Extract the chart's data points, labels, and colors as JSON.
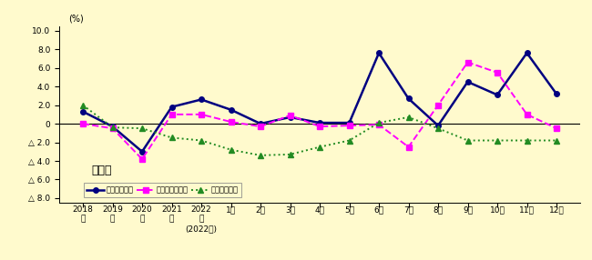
{
  "ylabel_unit": "(%)",
  "watermark": "製造業",
  "background_color": "#FFFACD",
  "plot_bg_color": "#FFFACD",
  "ylim": [
    -8.5,
    10.5
  ],
  "yticks": [
    -8.0,
    -6.0,
    -4.0,
    -2.0,
    0.0,
    2.0,
    4.0,
    6.0,
    8.0,
    10.0
  ],
  "ytick_labels": [
    "△ 8.0",
    "△ 6.0",
    "△ 4.0",
    "△ 2.0",
    "0",
    "2.0",
    "4.0",
    "6.0",
    "8.0",
    "10.0"
  ],
  "x_labels_line1": [
    "2018",
    "2019",
    "2020",
    "2021",
    "2022",
    "1月",
    "2月",
    "3月",
    "4月",
    "5月",
    "6月",
    "7月",
    "8月",
    "9月",
    "10月",
    "11月",
    "12月"
  ],
  "x_labels_line2": [
    "年",
    "年",
    "年",
    "年",
    "年",
    "",
    "",
    "",
    "",
    "",
    "",
    "",
    "",
    "",
    "",
    "",
    ""
  ],
  "x_labels_line3": [
    "",
    "",
    "",
    "",
    "(2022年)",
    "",
    "",
    "",
    "",
    "",
    "",
    "",
    "",
    "",
    "",
    "",
    ""
  ],
  "series_names": [
    "現金給与総額",
    "総実労働時間数",
    "常用労働者数"
  ],
  "series_colors": [
    "#000080",
    "#FF00FF",
    "#228B22"
  ],
  "series_markers": [
    "o",
    "s",
    "^"
  ],
  "series_linestyles": [
    "-",
    "--",
    ":"
  ],
  "series_linewidths": [
    1.8,
    1.4,
    1.4
  ],
  "series_markersizes": [
    4,
    4,
    4
  ],
  "series_values": [
    [
      1.3,
      -0.3,
      -3.0,
      1.8,
      2.6,
      1.5,
      0.0,
      0.7,
      0.1,
      0.1,
      7.6,
      2.7,
      -0.2,
      4.5,
      3.1,
      7.6,
      3.2
    ],
    [
      0.0,
      -0.5,
      -3.8,
      1.0,
      1.0,
      0.2,
      -0.3,
      0.9,
      -0.3,
      -0.2,
      -0.1,
      -2.5,
      2.0,
      6.6,
      5.5,
      1.0,
      -0.5
    ],
    [
      2.0,
      -0.4,
      -0.5,
      -1.5,
      -1.8,
      -2.8,
      -3.4,
      -3.3,
      -2.5,
      -1.8,
      0.1,
      0.7,
      -0.5,
      -1.8,
      -1.8,
      -1.8,
      -1.8
    ]
  ]
}
